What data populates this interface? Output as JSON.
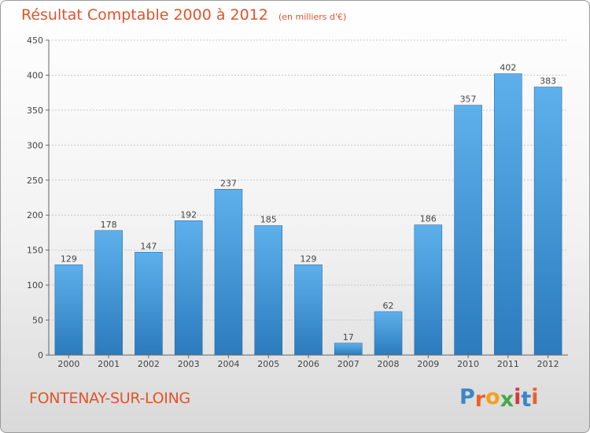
{
  "chart_data": {
    "type": "bar",
    "title": "Résultat Comptable 2000 à 2012",
    "subtitle": "(en milliers d'€)",
    "categories": [
      "2000",
      "2001",
      "2002",
      "2003",
      "2004",
      "2005",
      "2006",
      "2007",
      "2008",
      "2009",
      "2010",
      "2011",
      "2012"
    ],
    "values": [
      129,
      178,
      147,
      192,
      237,
      185,
      129,
      17,
      62,
      186,
      357,
      402,
      383
    ],
    "ylim": [
      0,
      450
    ],
    "yticks": [
      0,
      50,
      100,
      150,
      200,
      250,
      300,
      350,
      400,
      450
    ],
    "grid": true,
    "bar_color": "#4a9ad8"
  },
  "footer": {
    "city": "FONTENAY-SUR-LOING"
  },
  "logo": {
    "letters": [
      "P",
      "r",
      "o",
      "x",
      "i",
      "t",
      "i"
    ],
    "colors": [
      "#3c86c6",
      "#e8622c",
      "#f2a01f",
      "#45a84a",
      "#d33a3a",
      "#3c86c6",
      "#e8622c"
    ]
  }
}
